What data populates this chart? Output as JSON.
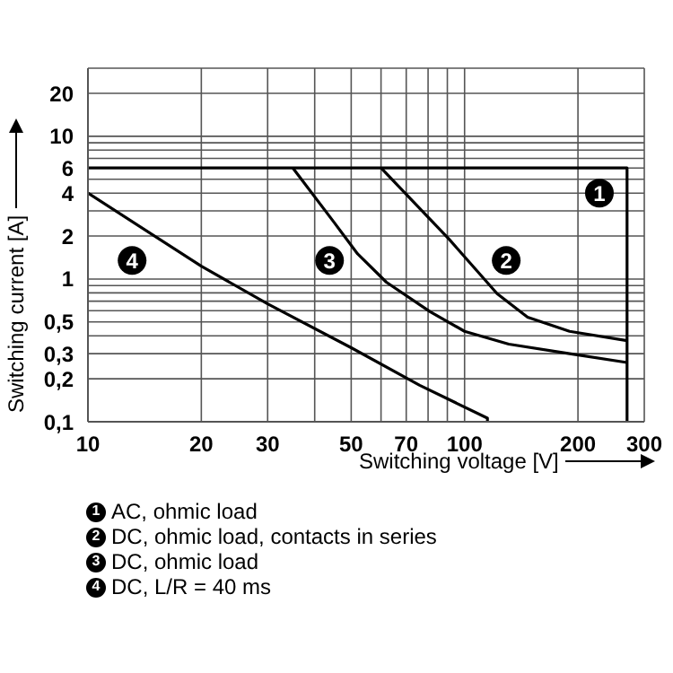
{
  "chart_data": {
    "type": "line",
    "xlabel": "Switching voltage [V]",
    "ylabel": "Switching current [A]",
    "log": "xy",
    "grid": true,
    "legend": "bottom",
    "marker": "none",
    "line_style": "solid",
    "xlim": [
      10,
      300
    ],
    "ylim": [
      0.1,
      30
    ],
    "xticks": [
      10,
      20,
      30,
      {
        "value": 40,
        "label": null
      },
      50,
      {
        "value": 60,
        "label": null
      },
      70,
      {
        "value": 80,
        "label": null
      },
      {
        "value": 90,
        "label": null
      },
      100,
      200,
      300
    ],
    "yticks": [
      {
        "value": 0.1,
        "label": "0,1"
      },
      {
        "value": 0.2,
        "label": "0,2"
      },
      {
        "value": 0.3,
        "label": "0,3"
      },
      {
        "value": 0.4,
        "label": null
      },
      {
        "value": 0.5,
        "label": "0,5"
      },
      {
        "value": 0.6,
        "label": null
      },
      {
        "value": 0.7,
        "label": null
      },
      {
        "value": 0.8,
        "label": null
      },
      {
        "value": 0.9,
        "label": null
      },
      1,
      2,
      {
        "value": 3,
        "label": null
      },
      4,
      {
        "value": 5,
        "label": null
      },
      6,
      {
        "value": 7,
        "label": null
      },
      {
        "value": 8,
        "label": null
      },
      {
        "value": 9,
        "label": null
      },
      10,
      20
    ],
    "series": [
      {
        "name": "AC, ohmic load",
        "color": "#000000",
        "x": [
          10,
          270,
          270
        ],
        "values": [
          6,
          6,
          0.1
        ]
      },
      {
        "name": "DC, ohmic load, contacts in series",
        "color": "#000000",
        "x": [
          60,
          91,
          122,
          147,
          190,
          270
        ],
        "values": [
          6,
          1.9,
          0.79,
          0.54,
          0.43,
          0.37
        ]
      },
      {
        "name": "DC, ohmic load",
        "color": "#000000",
        "x": [
          35,
          45,
          52,
          62,
          81,
          100,
          131,
          190,
          270
        ],
        "values": [
          6,
          2.5,
          1.5,
          0.95,
          0.59,
          0.43,
          0.35,
          0.3,
          0.26
        ]
      },
      {
        "name": "DC, L/R = 40 ms",
        "color": "#000000",
        "x": [
          10,
          20,
          30,
          50,
          76,
          115,
          115
        ],
        "values": [
          4,
          1.23,
          0.67,
          0.33,
          0.18,
          0.106,
          0.1
        ]
      }
    ],
    "annotations": [
      {
        "text": "1",
        "x": 228,
        "y": 4
      },
      {
        "text": "2",
        "x": 129,
        "y": 1.35
      },
      {
        "text": "3",
        "x": 43.8,
        "y": 1.35
      },
      {
        "text": "4",
        "x": 13.1,
        "y": 1.35
      }
    ]
  }
}
